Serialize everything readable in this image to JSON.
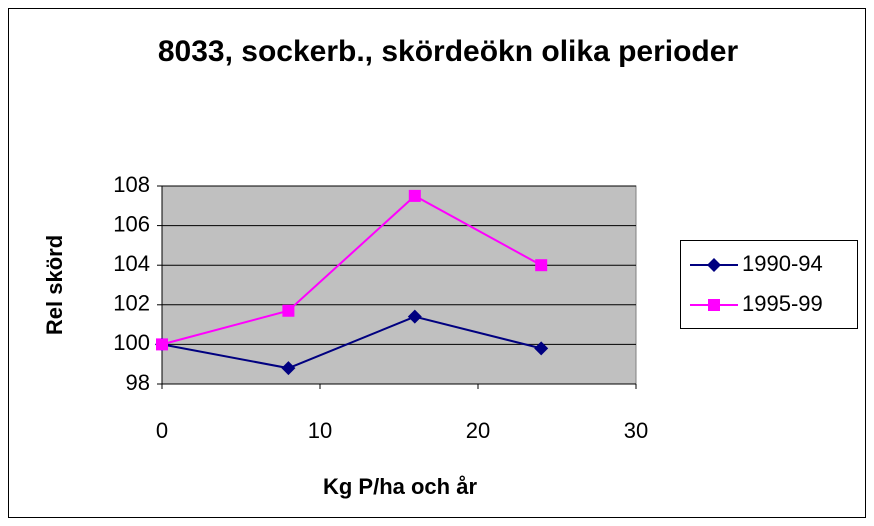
{
  "chart_data": {
    "type": "line",
    "title": "8033, sockerb., skördeökn olika perioder",
    "xlabel": "Kg P/ha och år",
    "ylabel": "Rel skörd",
    "x": [
      0,
      8,
      16,
      24
    ],
    "series": [
      {
        "name": "1990-94",
        "color": "#000080",
        "marker": "diamond",
        "values": [
          100,
          98.8,
          101.4,
          99.8
        ]
      },
      {
        "name": "1995-99",
        "color": "#ff00ff",
        "marker": "square",
        "values": [
          100,
          101.7,
          107.5,
          104
        ]
      }
    ],
    "xlim": [
      0,
      30
    ],
    "xticks": [
      0,
      10,
      20,
      30
    ],
    "ylim": [
      98,
      108
    ],
    "yticks": [
      98,
      100,
      102,
      104,
      106,
      108
    ],
    "grid": true,
    "legend": "right"
  }
}
